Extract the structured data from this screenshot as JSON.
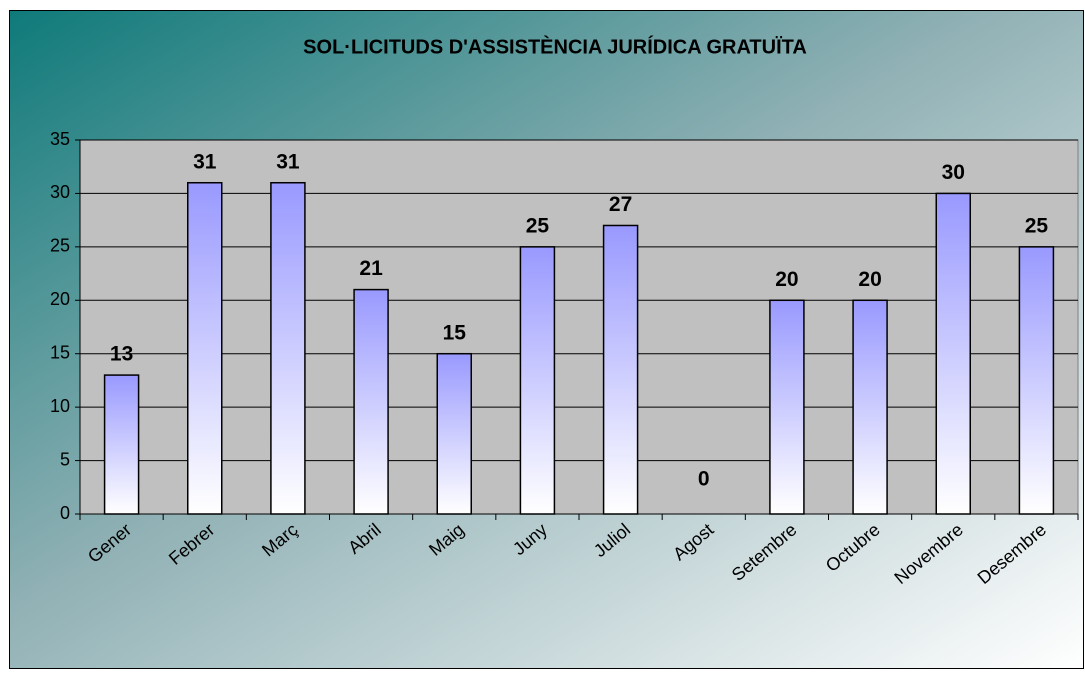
{
  "chart_data": {
    "type": "bar",
    "title": "SOL·LICITUDS D'ASSISTÈNCIA JURÍDICA GRATUÏTA",
    "categories": [
      "Gener",
      "Febrer",
      "Març",
      "Abril",
      "Maig",
      "Juny",
      "Juliol",
      "Agost",
      "Setembre",
      "Octubre",
      "Novembre",
      "Desembre"
    ],
    "values": [
      13,
      31,
      31,
      21,
      15,
      25,
      27,
      0,
      20,
      20,
      30,
      25
    ],
    "color": "#9999ff",
    "ylim": [
      0,
      35
    ],
    "yticks": [
      0,
      5,
      10,
      15,
      20,
      25,
      30,
      35
    ],
    "grid": true
  }
}
